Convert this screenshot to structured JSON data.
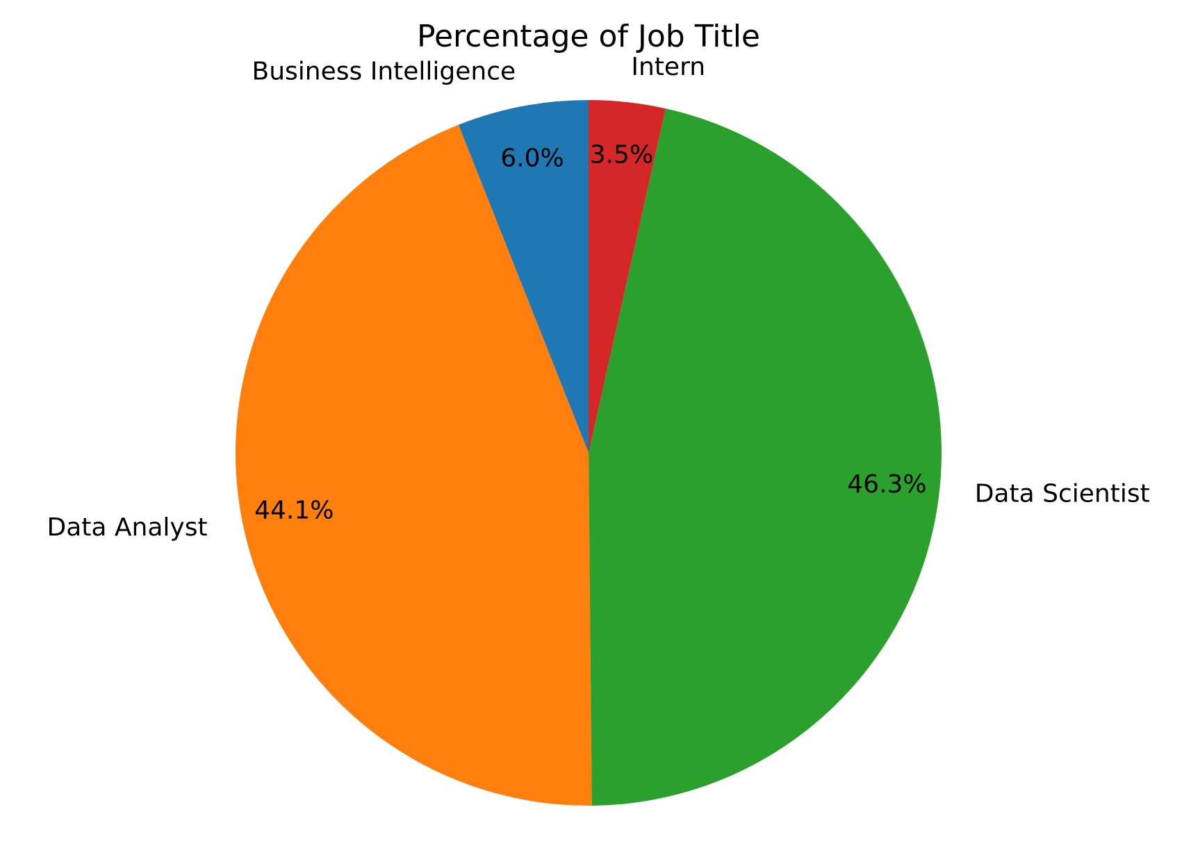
{
  "chart_data": {
    "type": "pie",
    "title": "Percentage of Job Title",
    "categories": [
      "Business Intelligence",
      "Data Analyst",
      "Data Scientist",
      "Intern"
    ],
    "values": [
      6.0,
      44.1,
      46.3,
      3.5
    ],
    "value_labels": [
      "6.0%",
      "44.1%",
      "46.3%",
      "3.5%"
    ],
    "colors": [
      "#1f77b4",
      "#ff7f0e",
      "#2ca02c",
      "#d62728"
    ],
    "start_angle_deg": 90,
    "direction": "counterclockwise",
    "legend": "none"
  }
}
